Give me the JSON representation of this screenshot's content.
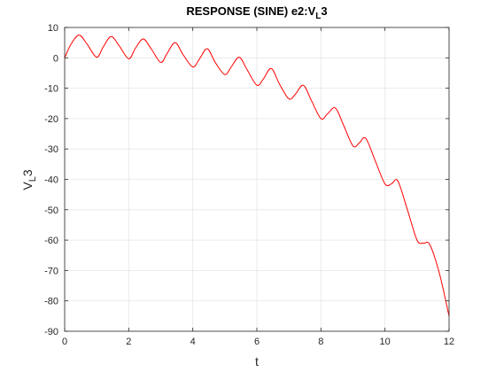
{
  "chart_data": {
    "type": "line",
    "title": {
      "main": "RESPONSE (SINE) e2:V",
      "sub": "L",
      "tail": "3"
    },
    "xlabel": "t",
    "ylabel": {
      "main": "V",
      "sub": "L",
      "tail": "3"
    },
    "xlim": [
      0,
      12
    ],
    "ylim": [
      -90,
      10
    ],
    "xticks": [
      0,
      2,
      4,
      6,
      8,
      10,
      12
    ],
    "yticks": [
      10,
      0,
      -10,
      -20,
      -30,
      -40,
      -50,
      -60,
      -70,
      -80,
      -90
    ],
    "grid": true,
    "colors": {
      "line": "#ff0000",
      "grid": "#e6e6e6",
      "axis": "#262626"
    },
    "series": [
      {
        "x": [
          0,
          0.2,
          0.45,
          0.7,
          1.0,
          1.2,
          1.45,
          1.7,
          2.0,
          2.2,
          2.45,
          2.7,
          3.0,
          3.2,
          3.45,
          3.7,
          4.0,
          4.2,
          4.45,
          4.7,
          5.0,
          5.2,
          5.45,
          5.7,
          6.0,
          6.2,
          6.45,
          6.7,
          7.0,
          7.2,
          7.45,
          7.7,
          8.0,
          8.2,
          8.45,
          8.7,
          9.0,
          9.2,
          9.4,
          9.7,
          10.0,
          10.2,
          10.4,
          10.7,
          11.0,
          11.2,
          11.4,
          11.7,
          12.0
        ],
        "y": [
          0,
          4.5,
          7.5,
          4.5,
          0.2,
          3.5,
          7.0,
          4.0,
          -0.3,
          3.0,
          6.2,
          3.0,
          -1.5,
          1.5,
          5.0,
          1.0,
          -3.0,
          -0.5,
          3.0,
          -1.5,
          -5.5,
          -3.0,
          0.2,
          -4.0,
          -9.0,
          -7.0,
          -3.5,
          -8.5,
          -13.5,
          -12.0,
          -9.0,
          -14.0,
          -20.0,
          -18.5,
          -16.5,
          -22.0,
          -29.0,
          -28.0,
          -26.5,
          -34.0,
          -41.5,
          -41.5,
          -40.5,
          -50.0,
          -60.0,
          -61.0,
          -61.5,
          -71.0,
          -85.0
        ]
      }
    ]
  }
}
